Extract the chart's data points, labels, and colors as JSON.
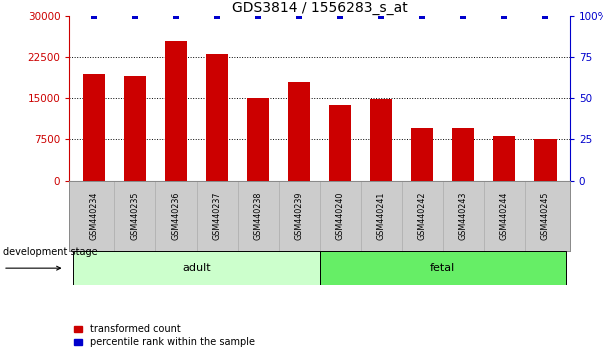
{
  "title": "GDS3814 / 1556283_s_at",
  "samples": [
    "GSM440234",
    "GSM440235",
    "GSM440236",
    "GSM440237",
    "GSM440238",
    "GSM440239",
    "GSM440240",
    "GSM440241",
    "GSM440242",
    "GSM440243",
    "GSM440244",
    "GSM440245"
  ],
  "bar_values": [
    19500,
    19000,
    25500,
    23000,
    15000,
    18000,
    13800,
    14800,
    9500,
    9500,
    8200,
    7600
  ],
  "percentile_values": [
    100,
    100,
    100,
    100,
    100,
    100,
    100,
    100,
    100,
    100,
    100,
    100
  ],
  "bar_color": "#cc0000",
  "percentile_color": "#0000cc",
  "ylim_left": [
    0,
    30000
  ],
  "ylim_right": [
    0,
    100
  ],
  "yticks_left": [
    0,
    7500,
    15000,
    22500,
    30000
  ],
  "ytick_labels_left": [
    "0",
    "7500",
    "15000",
    "22500",
    "30000"
  ],
  "yticks_right": [
    0,
    25,
    50,
    75,
    100
  ],
  "ytick_labels_right": [
    "0",
    "25",
    "50",
    "75",
    "100%"
  ],
  "groups": [
    {
      "label": "adult",
      "start": 0,
      "end": 6,
      "color": "#ccffcc"
    },
    {
      "label": "fetal",
      "start": 6,
      "end": 12,
      "color": "#66ee66"
    }
  ],
  "group_row_label": "development stage",
  "legend_items": [
    {
      "label": "transformed count",
      "color": "#cc0000"
    },
    {
      "label": "percentile rank within the sample",
      "color": "#0000cc"
    }
  ],
  "background_color": "#ffffff",
  "plot_bg_color": "#ffffff",
  "tick_label_color_left": "#cc0000",
  "tick_label_color_right": "#0000cc",
  "bar_width": 0.55,
  "sample_panel_color": "#cccccc",
  "sample_panel_border_color": "#888888"
}
